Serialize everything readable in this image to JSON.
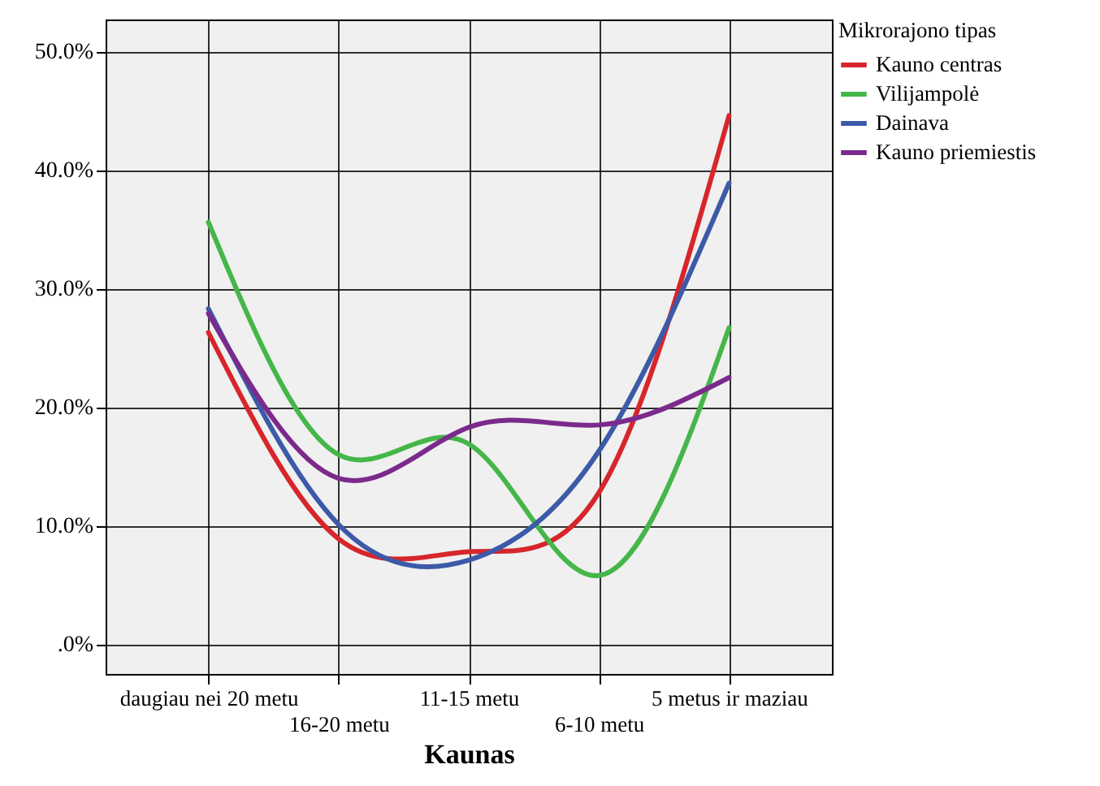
{
  "chart_data": {
    "type": "line",
    "xlabel": "Kaunas",
    "legend_title": "Mikrorajono tipas",
    "categories": [
      "daugiau nei 20 metu",
      "16-20 metu",
      "11-15 metu",
      "6-10 metu",
      "5 metus ir maziau"
    ],
    "series": [
      {
        "name": "Kauno centras",
        "color": "#d7262b",
        "values": [
          26.3,
          8.9,
          7.8,
          12.8,
          44.6
        ]
      },
      {
        "name": "Vilijampolė",
        "color": "#45b649",
        "values": [
          35.6,
          16.0,
          16.9,
          5.8,
          26.7
        ]
      },
      {
        "name": "Dainava",
        "color": "#3c5aa8",
        "values": [
          28.3,
          10.1,
          7.1,
          16.3,
          38.9
        ]
      },
      {
        "name": "Kauno priemiestis",
        "color": "#7b2a8c",
        "values": [
          27.9,
          14.0,
          18.3,
          18.5,
          22.5
        ]
      }
    ],
    "ylim": [
      -2.5,
      52.7
    ],
    "yticks": [
      {
        "value": 0,
        "label": ".0%"
      },
      {
        "value": 10,
        "label": "10.0%"
      },
      {
        "value": 20,
        "label": "20.0%"
      },
      {
        "value": 30,
        "label": "30.0%"
      },
      {
        "value": 40,
        "label": "40.0%"
      },
      {
        "value": 50,
        "label": "50.0%"
      }
    ],
    "grid": true,
    "legend": "top right",
    "marker": "none",
    "line_style": "solid"
  }
}
